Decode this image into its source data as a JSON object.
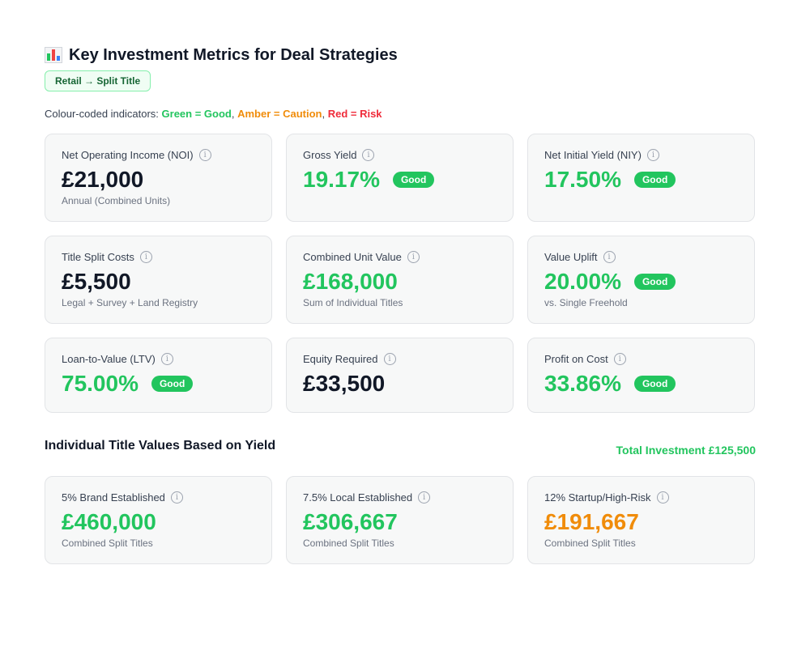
{
  "header": {
    "title": "Key Investment Metrics for Deal Strategies",
    "icon": "bar-chart-emoji",
    "strategy_badge": "Retail → Split Title"
  },
  "legend": {
    "prefix": "Colour-coded indicators: ",
    "green": "Green = Good",
    "amber": "Amber = Caution",
    "red": "Red = Risk",
    "sep": ", "
  },
  "colors": {
    "good": "#22c55e",
    "amber": "#f08c0a",
    "red": "#ef2b3a",
    "neutral": "#111827"
  },
  "metrics": [
    {
      "label": "Net Operating Income (NOI)",
      "value": "£21,000",
      "sub": "Annual (Combined Units)",
      "tone": "neutral"
    },
    {
      "label": "Gross Yield",
      "value": "19.17%",
      "badge": "Good",
      "tone": "good"
    },
    {
      "label": "Net Initial Yield (NIY)",
      "value": "17.50%",
      "badge": "Good",
      "tone": "good"
    },
    {
      "label": "Title Split Costs",
      "value": "£5,500",
      "sub": "Legal + Survey + Land Registry",
      "tone": "neutral"
    },
    {
      "label": "Combined Unit Value",
      "value": "£168,000",
      "sub": "Sum of Individual Titles",
      "tone": "good"
    },
    {
      "label": "Value Uplift",
      "value": "20.00%",
      "badge": "Good",
      "sub": "vs. Single Freehold",
      "tone": "good"
    },
    {
      "label": "Loan-to-Value (LTV)",
      "value": "75.00%",
      "badge": "Good",
      "tone": "good"
    },
    {
      "label": "Equity Required",
      "value": "£33,500",
      "tone": "neutral"
    },
    {
      "label": "Profit on Cost",
      "value": "33.86%",
      "badge": "Good",
      "tone": "good"
    }
  ],
  "titles_section": {
    "heading": "Individual Title Values Based on Yield",
    "total": "Total Investment £125,500",
    "items": [
      {
        "label": "5% Brand Established",
        "value": "£460,000",
        "sub": "Combined Split Titles",
        "tone": "good"
      },
      {
        "label": "7.5% Local Established",
        "value": "£306,667",
        "sub": "Combined Split Titles",
        "tone": "good"
      },
      {
        "label": "12% Startup/High-Risk",
        "value": "£191,667",
        "sub": "Combined Split Titles",
        "tone": "amber"
      }
    ]
  }
}
